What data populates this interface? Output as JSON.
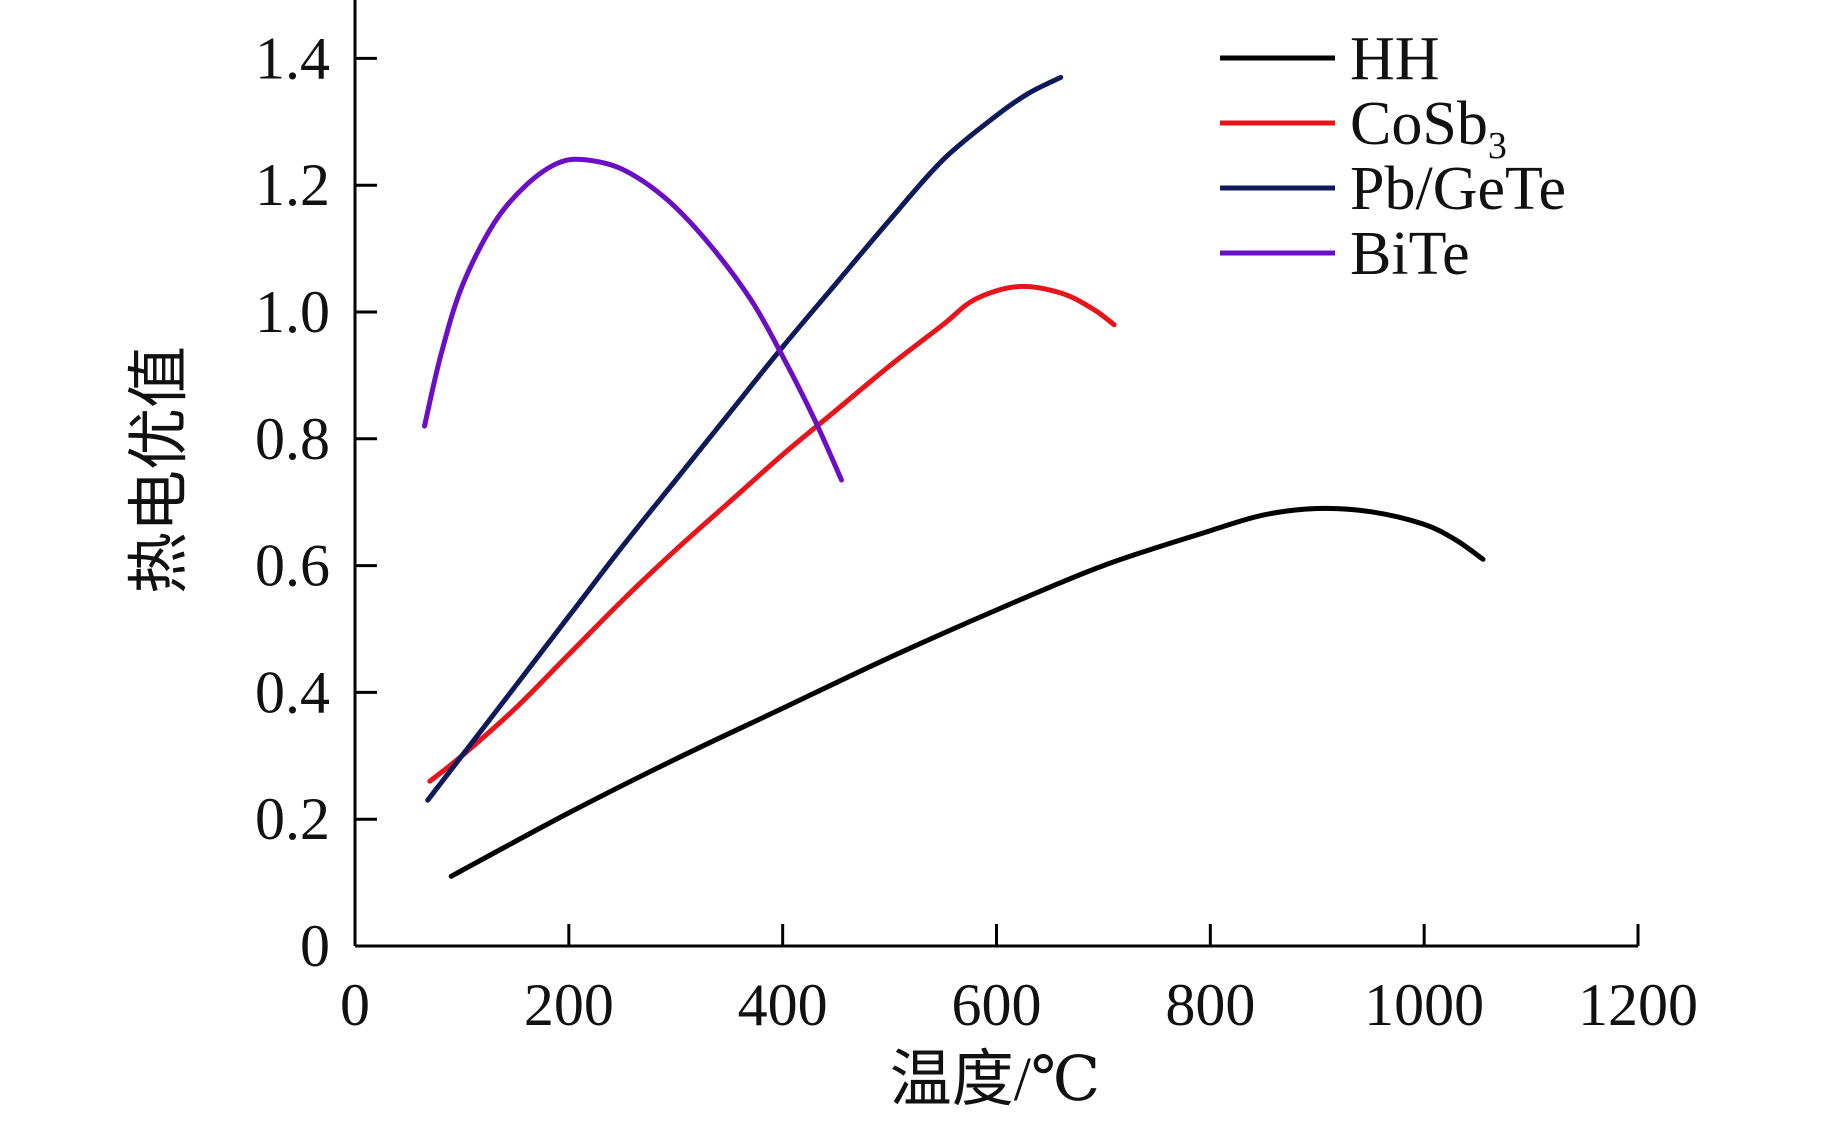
{
  "chart_data": {
    "type": "line",
    "xlabel": "温度/℃",
    "ylabel": "热电优值",
    "xlim": [
      0,
      1200
    ],
    "ylim": [
      0,
      1.5
    ],
    "xticks": [
      0,
      200,
      400,
      600,
      800,
      1000,
      1200
    ],
    "yticks": [
      0,
      0.2,
      0.4,
      0.6,
      0.8,
      1.0,
      1.2,
      1.4
    ],
    "xtick_labels": [
      "0",
      "200",
      "400",
      "600",
      "800",
      "1000",
      "1200"
    ],
    "ytick_labels": [
      "0",
      "0.2",
      "0.4",
      "0.6",
      "0.8",
      "1.0",
      "1.2",
      "1.4"
    ],
    "grid": false,
    "legend_position": "top-right",
    "series": [
      {
        "name": "HH",
        "name_main": "HH",
        "name_sub": "",
        "color": "#000000",
        "points": [
          [
            90,
            0.11
          ],
          [
            200,
            0.21
          ],
          [
            300,
            0.295
          ],
          [
            400,
            0.375
          ],
          [
            500,
            0.455
          ],
          [
            600,
            0.53
          ],
          [
            700,
            0.6
          ],
          [
            800,
            0.655
          ],
          [
            850,
            0.68
          ],
          [
            900,
            0.69
          ],
          [
            950,
            0.685
          ],
          [
            1000,
            0.665
          ],
          [
            1030,
            0.64
          ],
          [
            1055,
            0.61
          ]
        ]
      },
      {
        "name": "CoSb3",
        "name_main": "CoSb",
        "name_sub": "3",
        "color": "#e8141b",
        "points": [
          [
            70,
            0.26
          ],
          [
            100,
            0.3
          ],
          [
            150,
            0.375
          ],
          [
            200,
            0.46
          ],
          [
            250,
            0.545
          ],
          [
            300,
            0.625
          ],
          [
            350,
            0.7
          ],
          [
            400,
            0.775
          ],
          [
            450,
            0.845
          ],
          [
            500,
            0.915
          ],
          [
            550,
            0.98
          ],
          [
            580,
            1.02
          ],
          [
            620,
            1.04
          ],
          [
            660,
            1.03
          ],
          [
            690,
            1.005
          ],
          [
            710,
            0.98
          ]
        ]
      },
      {
        "name": "Pb/GeTe",
        "name_main": "Pb/GeTe",
        "name_sub": "",
        "color": "#0e1a5a",
        "points": [
          [
            68,
            0.23
          ],
          [
            100,
            0.3
          ],
          [
            150,
            0.41
          ],
          [
            200,
            0.52
          ],
          [
            250,
            0.63
          ],
          [
            300,
            0.735
          ],
          [
            350,
            0.84
          ],
          [
            400,
            0.945
          ],
          [
            450,
            1.045
          ],
          [
            500,
            1.145
          ],
          [
            550,
            1.24
          ],
          [
            600,
            1.31
          ],
          [
            630,
            1.345
          ],
          [
            660,
            1.37
          ]
        ]
      },
      {
        "name": "BiTe",
        "name_main": "BiTe",
        "name_sub": "",
        "color": "#6a0fc6",
        "points": [
          [
            65,
            0.82
          ],
          [
            80,
            0.93
          ],
          [
            100,
            1.04
          ],
          [
            130,
            1.14
          ],
          [
            160,
            1.2
          ],
          [
            190,
            1.235
          ],
          [
            215,
            1.24
          ],
          [
            250,
            1.225
          ],
          [
            290,
            1.18
          ],
          [
            330,
            1.11
          ],
          [
            370,
            1.02
          ],
          [
            400,
            0.93
          ],
          [
            430,
            0.83
          ],
          [
            455,
            0.735
          ]
        ]
      }
    ]
  }
}
